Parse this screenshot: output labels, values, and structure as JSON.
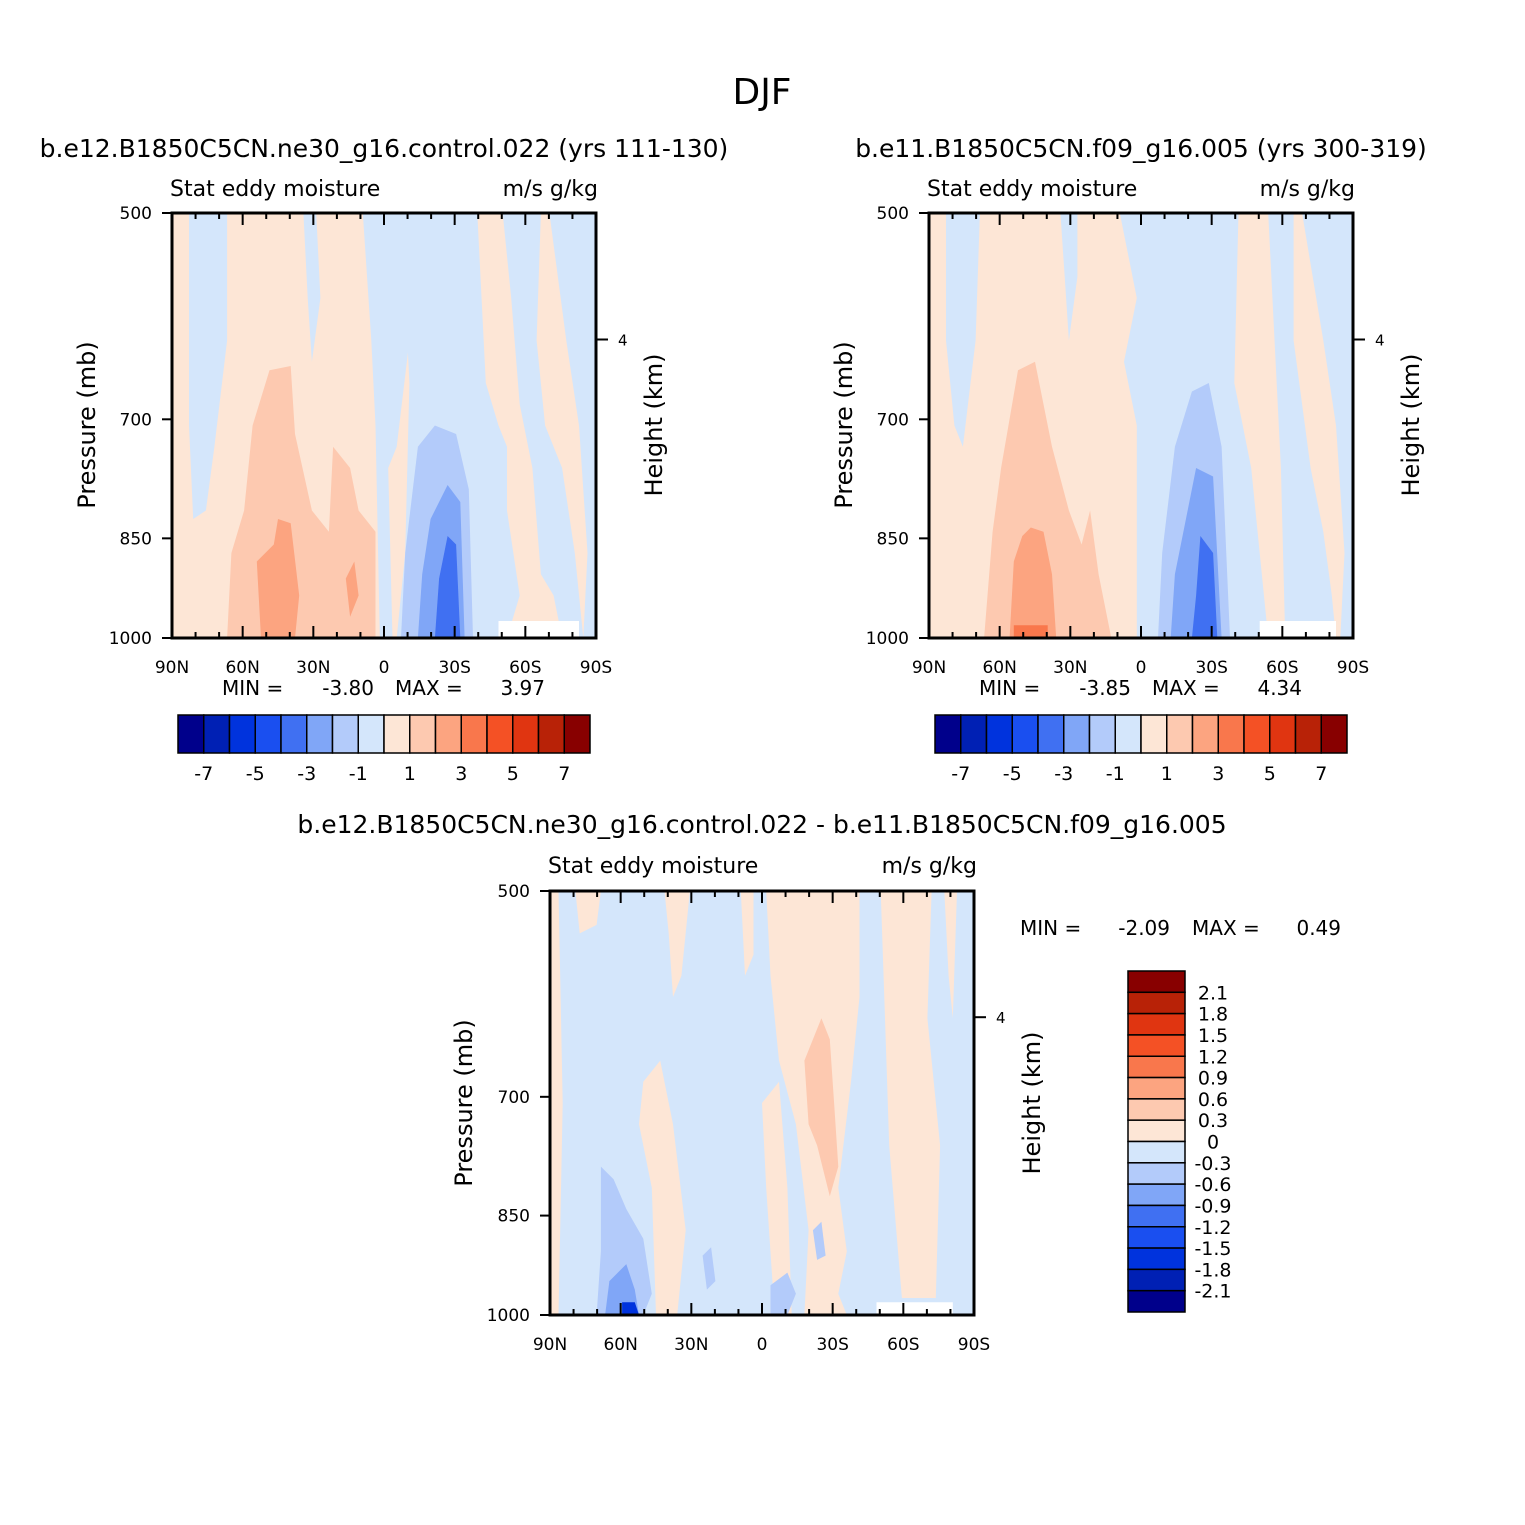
{
  "page_title": "DJF",
  "chart_data": [
    {
      "type": "heatmap",
      "title": "b.e12.B1850C5CN.ne30_g16.control.022 (yrs 111-130)",
      "subtitle_left": "Stat eddy moisture",
      "subtitle_right": "m/s g/kg",
      "ylabel": "Pressure (mb)",
      "ylabel_right": "Height (km)",
      "x_ticks": [
        "90N",
        "60N",
        "30N",
        "0",
        "30S",
        "60S",
        "90S"
      ],
      "y_ticks": [
        "500",
        "700",
        "850",
        "1000"
      ],
      "y_right_ticks": [
        "4"
      ],
      "min_label": "MIN =",
      "min_value": "-3.80",
      "max_label": "MAX =",
      "max_value": "3.97",
      "colorbar_labels": [
        "-7",
        "-5",
        "-3",
        "-1",
        "1",
        "3",
        "5",
        "7"
      ]
    },
    {
      "type": "heatmap",
      "title": "b.e11.B1850C5CN.f09_g16.005 (yrs 300-319)",
      "subtitle_left": "Stat eddy moisture",
      "subtitle_right": "m/s g/kg",
      "ylabel": "Pressure (mb)",
      "ylabel_right": "Height (km)",
      "x_ticks": [
        "90N",
        "60N",
        "30N",
        "0",
        "30S",
        "60S",
        "90S"
      ],
      "y_ticks": [
        "500",
        "700",
        "850",
        "1000"
      ],
      "y_right_ticks": [
        "4"
      ],
      "min_label": "MIN =",
      "min_value": "-3.85",
      "max_label": "MAX =",
      "max_value": "4.34",
      "colorbar_labels": [
        "-7",
        "-5",
        "-3",
        "-1",
        "1",
        "3",
        "5",
        "7"
      ]
    },
    {
      "type": "heatmap",
      "title": "b.e12.B1850C5CN.ne30_g16.control.022 - b.e11.B1850C5CN.f09_g16.005",
      "subtitle_left": "Stat eddy moisture",
      "subtitle_right": "m/s g/kg",
      "ylabel": "Pressure (mb)",
      "ylabel_right": "Height (km)",
      "x_ticks": [
        "90N",
        "60N",
        "30N",
        "0",
        "30S",
        "60S",
        "90S"
      ],
      "y_ticks": [
        "500",
        "700",
        "850",
        "1000"
      ],
      "y_right_ticks": [
        "4"
      ],
      "min_label": "MIN =",
      "min_value": "-2.09",
      "max_label": "MAX =",
      "max_value": "0.49",
      "colorbar_labels": [
        "2.1",
        "1.8",
        "1.5",
        "1.2",
        "0.9",
        "0.6",
        "0.3",
        "0",
        "-0.3",
        "-0.6",
        "-0.9",
        "-1.2",
        "-1.5",
        "-1.8",
        "-2.1"
      ]
    }
  ],
  "palette": [
    "#00008b",
    "#0020b4",
    "#0033dd",
    "#1a4ff0",
    "#4070f2",
    "#80a6f7",
    "#b3cbfa",
    "#d4e6fb",
    "#fde6d6",
    "#fdc9b0",
    "#fca480",
    "#f9774c",
    "#f45125",
    "#e03511",
    "#b82207",
    "#880000"
  ]
}
